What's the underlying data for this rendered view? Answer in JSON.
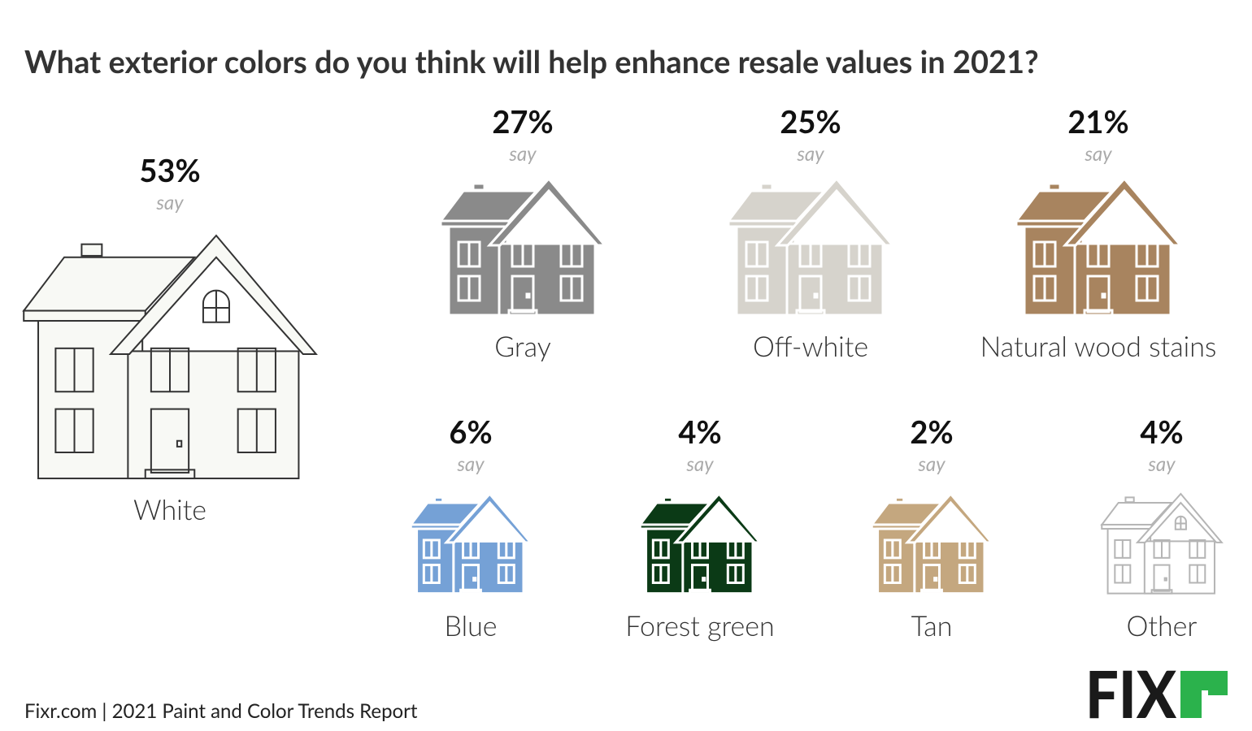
{
  "chart_data": {
    "type": "pictograph",
    "title": "What exterior colors do you think will help enhance resale values in 2021?",
    "categories": [
      "White",
      "Gray",
      "Off-white",
      "Natural wood stains",
      "Blue",
      "Forest green",
      "Tan",
      "Other"
    ],
    "values": [
      53,
      27,
      25,
      21,
      6,
      4,
      2,
      4
    ],
    "value_labels": [
      "53%",
      "27%",
      "25%",
      "21%",
      "6%",
      "4%",
      "2%",
      "4%"
    ],
    "value_caption": "say",
    "colors": [
      "#f8f9f5",
      "#8a8a8a",
      "#d6d3cc",
      "#a8845f",
      "#75a1d6",
      "#0b3a16",
      "#c4a77f",
      "#ffffff"
    ],
    "outlines": [
      "#333333",
      "#ffffff",
      "#ffffff",
      "#ffffff",
      "#ffffff",
      "#ffffff",
      "#ffffff",
      "#b5b5b5"
    ],
    "source": "Fixr.com | 2021 Paint and Color Trends Report",
    "logo": "FIX"
  }
}
